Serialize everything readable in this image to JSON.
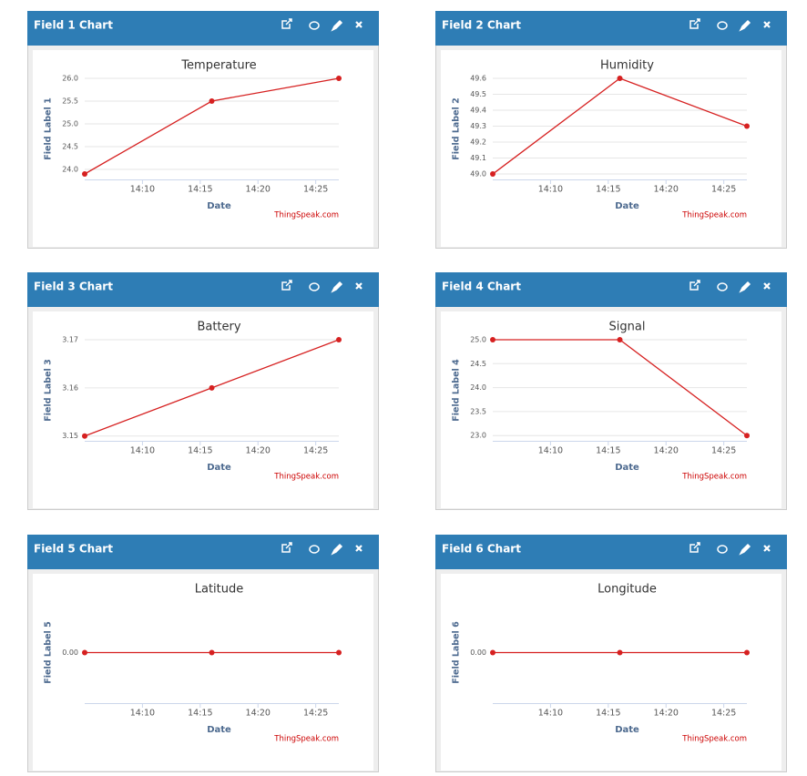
{
  "panels": [
    {
      "title": "Field 1 Chart"
    },
    {
      "title": "Field 2 Chart"
    },
    {
      "title": "Field 3 Chart"
    },
    {
      "title": "Field 4 Chart"
    },
    {
      "title": "Field 5 Chart"
    },
    {
      "title": "Field 6 Chart"
    }
  ],
  "chart_data": [
    {
      "type": "line",
      "title": "Temperature",
      "xlabel": "Date",
      "ylabel": "Field Label 1",
      "annotation": "ThingSpeak.com",
      "color": "#d62020",
      "grid": true,
      "x": [
        "14:05",
        "14:16",
        "14:27"
      ],
      "values": [
        23.9,
        25.5,
        26.0
      ],
      "xlim": [
        "14:05",
        "14:27"
      ],
      "xticks": [
        "14:10",
        "14:15",
        "14:20",
        "14:25"
      ],
      "ylim": [
        23.78,
        26
      ],
      "yticks": [
        {
          "value": 24,
          "label": "24.0"
        },
        24.5,
        {
          "value": 25,
          "label": "25.0"
        },
        25.5,
        {
          "value": 26,
          "label": "26.0"
        }
      ]
    },
    {
      "type": "line",
      "title": "Humidity",
      "xlabel": "Date",
      "ylabel": "Field Label 2",
      "annotation": "ThingSpeak.com",
      "color": "#d62020",
      "grid": true,
      "x": [
        "14:05",
        "14:16",
        "14:27"
      ],
      "values": [
        49.0,
        49.6,
        49.3
      ],
      "xlim": [
        "14:05",
        "14:27"
      ],
      "xticks": [
        "14:10",
        "14:15",
        "14:20",
        "14:25"
      ],
      "ylim": [
        48.966,
        49.6
      ],
      "yticks": [
        {
          "value": 49,
          "label": "49.0"
        },
        49.1,
        49.2,
        49.3,
        49.4,
        49.5,
        49.6
      ]
    },
    {
      "type": "line",
      "title": "Battery",
      "xlabel": "Date",
      "ylabel": "Field Label 3",
      "annotation": "ThingSpeak.com",
      "color": "#d62020",
      "grid": true,
      "x": [
        "14:05",
        "14:16",
        "14:27"
      ],
      "values": [
        3.15,
        3.16,
        3.17
      ],
      "xlim": [
        "14:05",
        "14:27"
      ],
      "xticks": [
        "14:10",
        "14:15",
        "14:20",
        "14:25"
      ],
      "ylim": [
        3.149,
        3.17
      ],
      "yticks": [
        3.15,
        3.16,
        3.17
      ]
    },
    {
      "type": "line",
      "title": "Signal",
      "xlabel": "Date",
      "ylabel": "Field Label 4",
      "annotation": "ThingSpeak.com",
      "color": "#d62020",
      "grid": true,
      "x": [
        "14:05",
        "14:16",
        "14:27"
      ],
      "values": [
        25,
        25,
        23
      ],
      "xlim": [
        "14:05",
        "14:27"
      ],
      "xticks": [
        "14:10",
        "14:15",
        "14:20",
        "14:25"
      ],
      "ylim": [
        22.89,
        25
      ],
      "yticks": [
        {
          "value": 23,
          "label": "23.0"
        },
        23.5,
        {
          "value": 24,
          "label": "24.0"
        },
        24.5,
        {
          "value": 25,
          "label": "25.0"
        }
      ]
    },
    {
      "type": "line",
      "title": "Latitude",
      "xlabel": "Date",
      "ylabel": "Field Label 5",
      "annotation": "ThingSpeak.com",
      "color": "#d62020",
      "grid": true,
      "x": [
        "14:05",
        "14:16",
        "14:27"
      ],
      "values": [
        0,
        0,
        0
      ],
      "xlim": [
        "14:05",
        "14:27"
      ],
      "xticks": [
        "14:10",
        "14:15",
        "14:20",
        "14:25"
      ],
      "ylim": [
        -1,
        1
      ],
      "yticks": [
        {
          "value": 0,
          "label": "0.00"
        }
      ]
    },
    {
      "type": "line",
      "title": "Longitude",
      "xlabel": "Date",
      "ylabel": "Field Label 6",
      "annotation": "ThingSpeak.com",
      "color": "#d62020",
      "grid": true,
      "x": [
        "14:05",
        "14:16",
        "14:27"
      ],
      "values": [
        0,
        0,
        0
      ],
      "xlim": [
        "14:05",
        "14:27"
      ],
      "xticks": [
        "14:10",
        "14:15",
        "14:20",
        "14:25"
      ],
      "ylim": [
        -1,
        1
      ],
      "yticks": [
        {
          "value": 0,
          "label": "0.00"
        }
      ]
    }
  ]
}
